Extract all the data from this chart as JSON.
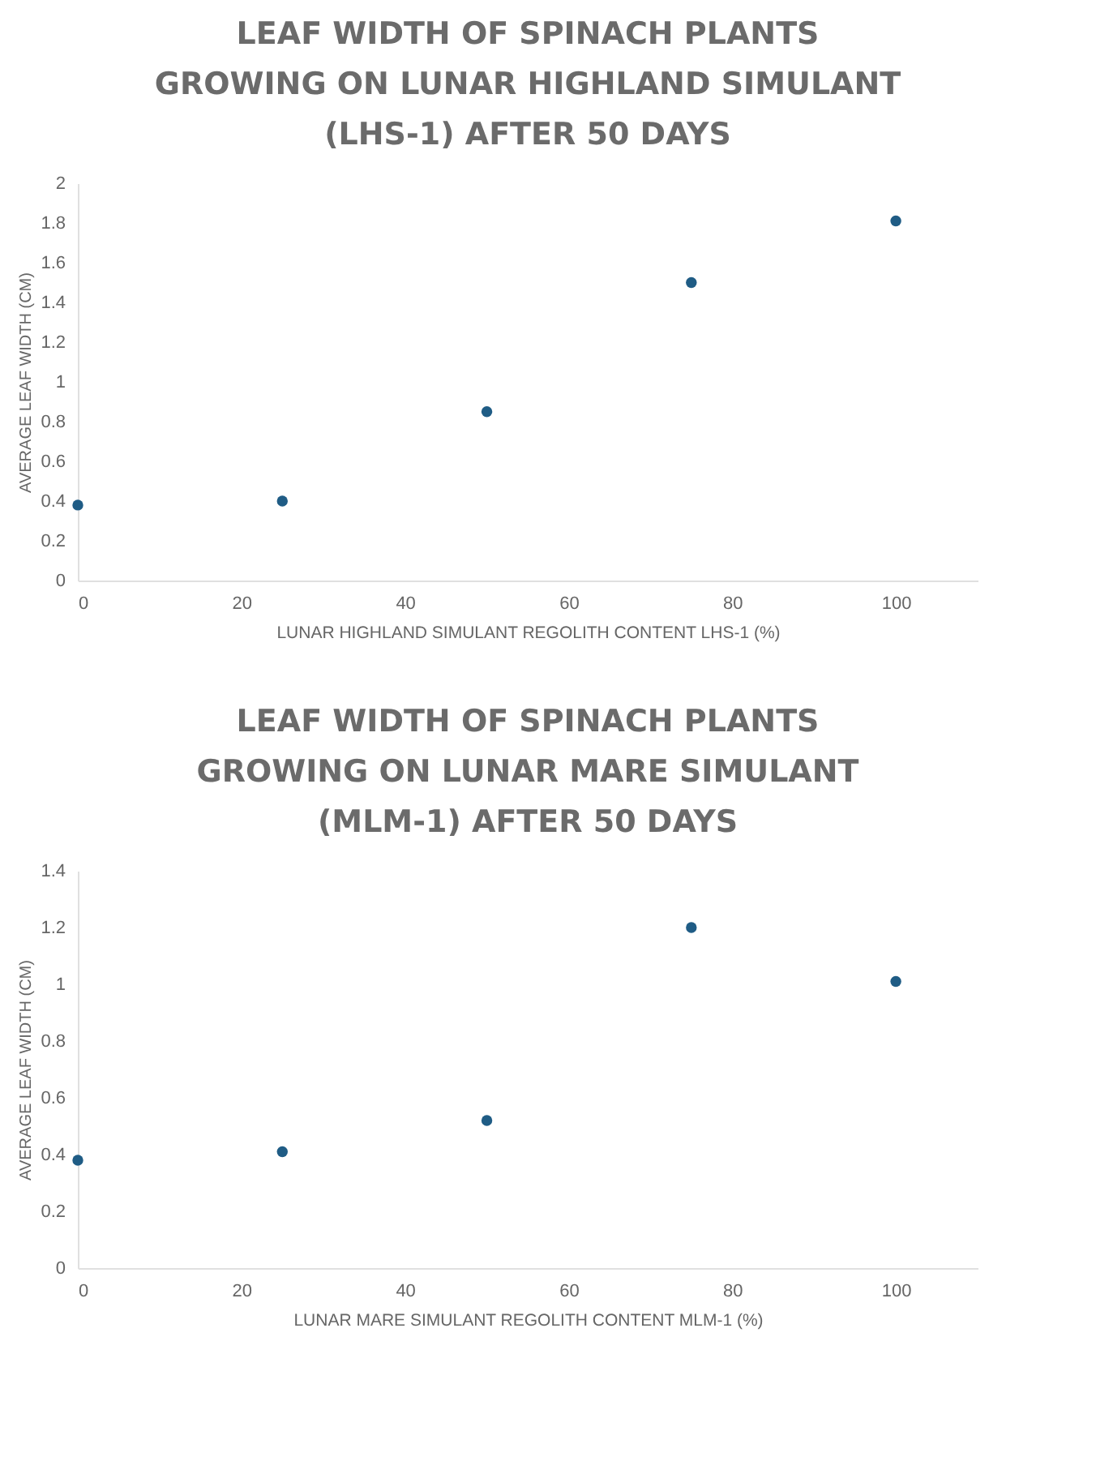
{
  "chart_data": [
    {
      "type": "scatter",
      "title": "LEAF WIDTH OF SPINACH PLANTS GROWING ON LUNAR HIGHLAND SIMULANT (LHS-1) AFTER 50 DAYS",
      "xlabel": "LUNAR HIGHLAND SIMULANT REGOLITH CONTENT LHS-1 (%)",
      "ylabel": "AVERAGE LEAF WIDTH (CM)",
      "x": [
        0,
        25,
        50,
        75,
        100
      ],
      "series": [
        {
          "color": "#1f5c85",
          "values": [
            0.38,
            0.4,
            0.85,
            1.5,
            1.81
          ]
        }
      ],
      "xlim": [
        0,
        110
      ],
      "xticks": [
        0,
        20,
        40,
        60,
        80,
        100
      ],
      "ylim": [
        0,
        2
      ],
      "yticks": [
        0,
        0.2,
        0.4,
        0.6,
        0.8,
        1,
        1.2,
        1.4,
        1.6,
        1.8,
        2
      ],
      "grid": false,
      "marker": "circle"
    },
    {
      "type": "scatter",
      "title": "LEAF WIDTH OF SPINACH PLANTS GROWING ON LUNAR MARE SIMULANT (MLM-1) AFTER 50 DAYS",
      "xlabel": "LUNAR MARE SIMULANT REGOLITH CONTENT MLM-1 (%)",
      "ylabel": "AVERAGE LEAF WIDTH (CM)",
      "x": [
        0,
        25,
        50,
        75,
        100
      ],
      "series": [
        {
          "color": "#1f5c85",
          "values": [
            0.38,
            0.41,
            0.52,
            1.2,
            1.01
          ]
        }
      ],
      "xlim": [
        0,
        110
      ],
      "xticks": [
        0,
        20,
        40,
        60,
        80,
        100
      ],
      "ylim": [
        0,
        1.4
      ],
      "yticks": [
        0,
        0.2,
        0.4,
        0.6,
        0.8,
        1,
        1.2,
        1.4
      ],
      "grid": false,
      "marker": "circle"
    }
  ]
}
